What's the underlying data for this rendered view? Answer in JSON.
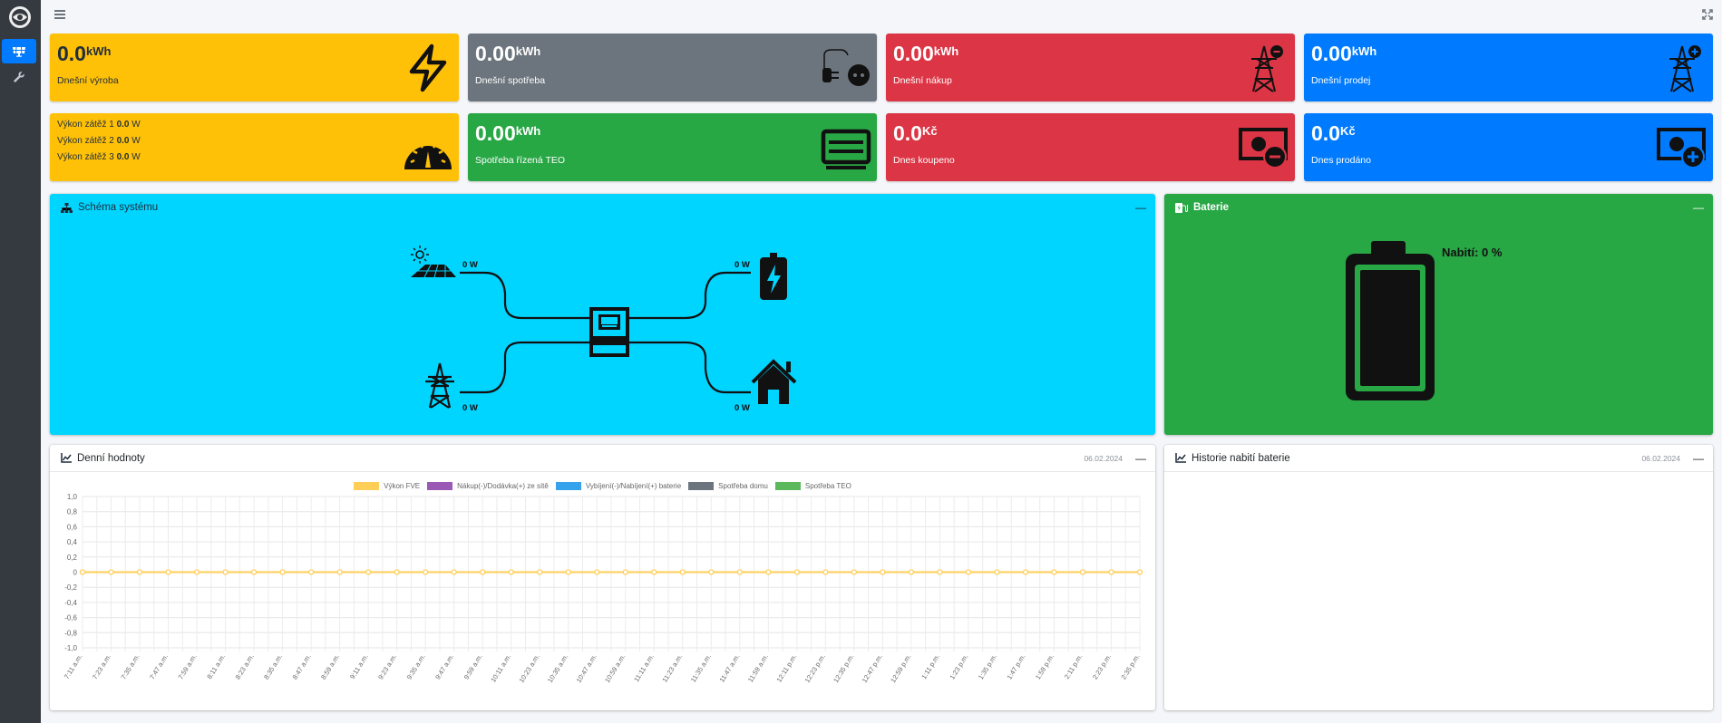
{
  "boxes": [
    {
      "value": "0.0",
      "unit": "kWh",
      "label": "Dnešní výroba",
      "icon": "lightning-icon"
    },
    {
      "value": "0.00",
      "unit": "kWh",
      "label": "Dnešní spotřeba",
      "icon": "plug-icon"
    },
    {
      "value": "0.00",
      "unit": "kWh",
      "label": "Dnešní nákup",
      "icon": "power-tower-minus-icon"
    },
    {
      "value": "0.00",
      "unit": "kWh",
      "label": "Dnešní prodej",
      "icon": "power-tower-plus-icon"
    },
    {
      "value": "0.00",
      "unit": "kWh",
      "label": "Spotřeba řízená TEO",
      "icon": "heater-icon"
    },
    {
      "value": "0.0",
      "unit": "Kč",
      "label": "Dnes koupeno",
      "icon": "money-minus-icon"
    },
    {
      "value": "0.0",
      "unit": "Kč",
      "label": "Dnes prodáno",
      "icon": "money-plus-icon"
    }
  ],
  "loads": [
    {
      "label": "Výkon zátěž 1",
      "value": "0.0",
      "unit": "W"
    },
    {
      "label": "Výkon zátěž 2",
      "value": "0.0",
      "unit": "W"
    },
    {
      "label": "Výkon zátěž 3",
      "value": "0.0",
      "unit": "W"
    }
  ],
  "schema": {
    "title": "Schéma systému",
    "pv_power": "0 W",
    "battery_power": "0 W",
    "grid_power": "0 W",
    "home_power": "0 W",
    "color": "#00d5ff"
  },
  "battery": {
    "title": "Baterie",
    "charge_text": "Nabití: 0 %",
    "charge_percent": 0
  },
  "daily": {
    "title": "Denní hodnoty",
    "date": "06.02.2024"
  },
  "history": {
    "title": "Historie nabití baterie",
    "date": "06.02.2024"
  },
  "chart_data": {
    "type": "line",
    "legend_position": "top",
    "grid": true,
    "ylim": [
      -1,
      1
    ],
    "y_ticks": [
      "1,0",
      "0,8",
      "0,6",
      "0,4",
      "0,2",
      "0",
      "-0,2",
      "-0,4",
      "-0,6",
      "-0,8",
      "-1,0"
    ],
    "categories": [
      "7:11 a.m.",
      "7:17 a.m.",
      "7:23 a.m.",
      "7:29 a.m.",
      "7:35 a.m.",
      "7:41 a.m.",
      "7:47 a.m.",
      "7:53 a.m.",
      "7:59 a.m.",
      "8:05 a.m.",
      "8:11 a.m.",
      "8:17 a.m.",
      "8:23 a.m.",
      "8:29 a.m.",
      "8:35 a.m.",
      "8:41 a.m.",
      "8:47 a.m.",
      "8:53 a.m.",
      "8:59 a.m.",
      "9:05 a.m.",
      "9:11 a.m.",
      "9:17 a.m.",
      "9:23 a.m.",
      "9:29 a.m.",
      "9:35 a.m.",
      "9:41 a.m.",
      "9:47 a.m.",
      "9:53 a.m.",
      "9:59 a.m.",
      "10:05 a.m.",
      "10:11 a.m.",
      "10:17 a.m.",
      "10:23 a.m.",
      "10:29 a.m.",
      "10:35 a.m.",
      "10:41 a.m.",
      "10:47 a.m.",
      "10:53 a.m.",
      "10:59 a.m.",
      "11:05 a.m.",
      "11:11 a.m.",
      "11:17 a.m.",
      "11:23 a.m.",
      "11:29 a.m.",
      "11:35 a.m.",
      "11:41 a.m.",
      "11:47 a.m.",
      "11:53 a.m.",
      "11:59 a.m.",
      "12:05 p.m.",
      "12:11 p.m.",
      "12:17 p.m.",
      "12:23 p.m.",
      "12:29 p.m.",
      "12:35 p.m.",
      "12:41 p.m.",
      "12:47 p.m.",
      "12:53 p.m.",
      "12:59 p.m.",
      "1:05 p.m.",
      "1:11 p.m.",
      "1:17 p.m.",
      "1:23 p.m.",
      "1:29 p.m.",
      "1:35 p.m.",
      "1:41 p.m.",
      "1:47 p.m.",
      "1:53 p.m.",
      "1:59 p.m.",
      "2:05 p.m.",
      "2:11 p.m.",
      "2:17 p.m.",
      "2:23 p.m.",
      "2:29 p.m.",
      "2:35 p.m."
    ],
    "series": [
      {
        "name": "Výkon FVE",
        "color": "#ffce56",
        "value": 0
      },
      {
        "name": "Nákup(-)/Dodávka(+) ze sítě",
        "color": "#9b59b6",
        "value": 0
      },
      {
        "name": "Vybíjení(-)/Nabíjení(+) baterie",
        "color": "#36a2eb",
        "value": 0
      },
      {
        "name": "Spotřeba domu",
        "color": "#6c757d",
        "value": 0
      },
      {
        "name": "Spotřeba TEO",
        "color": "#5cb85c",
        "value": 0
      }
    ]
  }
}
